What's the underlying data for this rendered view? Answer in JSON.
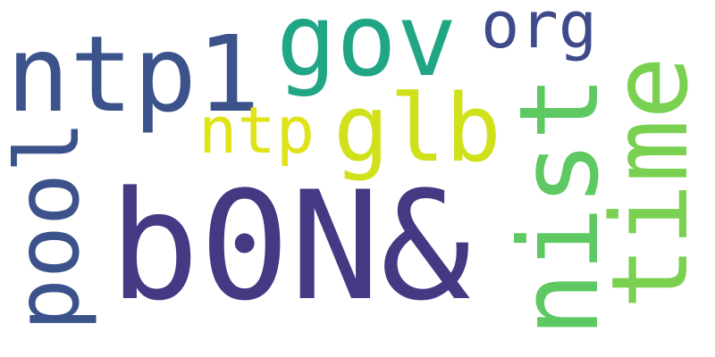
{
  "cloud": {
    "words": [
      {
        "id": "b0n",
        "text": "b0N&",
        "color": "#443983",
        "orientation": "horizontal"
      },
      {
        "id": "gov",
        "text": "gov",
        "color": "#21a685",
        "orientation": "horizontal"
      },
      {
        "id": "ntp1",
        "text": "ntp1",
        "color": "#3b528b",
        "orientation": "horizontal"
      },
      {
        "id": "org",
        "text": "org",
        "color": "#3e4a89",
        "orientation": "horizontal"
      },
      {
        "id": "glb",
        "text": "glb",
        "color": "#d0e11c",
        "orientation": "horizontal"
      },
      {
        "id": "ntp",
        "text": "ntp",
        "color": "#dfe318",
        "orientation": "horizontal"
      },
      {
        "id": "pool",
        "text": "pool",
        "color": "#3b528b",
        "orientation": "vertical"
      },
      {
        "id": "nist",
        "text": "nist",
        "color": "#5ec962",
        "orientation": "vertical"
      },
      {
        "id": "time",
        "text": "time",
        "color": "#7ad151",
        "orientation": "vertical"
      }
    ]
  }
}
